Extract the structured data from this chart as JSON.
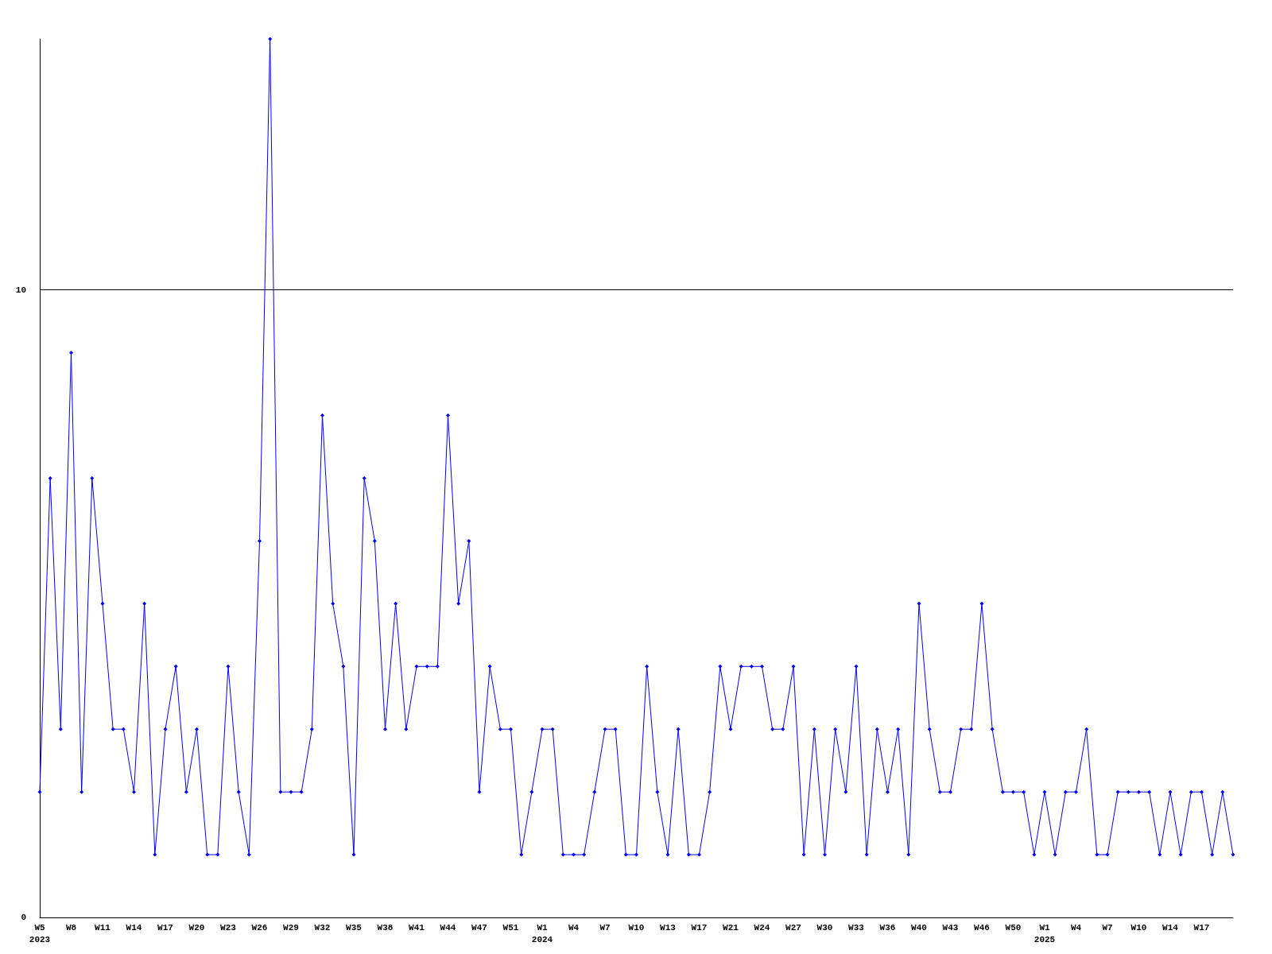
{
  "chart_data": {
    "type": "line",
    "categories": [
      "W5\n2023",
      null,
      null,
      "W8",
      null,
      null,
      "W11",
      null,
      null,
      "W14",
      null,
      null,
      "W17",
      null,
      null,
      "W20",
      null,
      null,
      "W23",
      null,
      null,
      "W26",
      null,
      null,
      "W29",
      null,
      null,
      "W32",
      null,
      null,
      "W35",
      null,
      null,
      "W38",
      null,
      null,
      "W41",
      null,
      null,
      "W44",
      null,
      null,
      "W47",
      null,
      null,
      "W51",
      null,
      null,
      "W1\n2024",
      null,
      null,
      "W4",
      null,
      null,
      "W7",
      null,
      null,
      "W10",
      null,
      null,
      "W13",
      null,
      null,
      "W17",
      null,
      null,
      "W21",
      null,
      null,
      "W24",
      null,
      null,
      "W27",
      null,
      null,
      "W30",
      null,
      null,
      "W33",
      null,
      null,
      "W36",
      null,
      null,
      "W40",
      null,
      null,
      "W43",
      null,
      null,
      "W46",
      null,
      null,
      "W50",
      null,
      null,
      "W1\n2025",
      null,
      null,
      "W4",
      null,
      null,
      "W7",
      null,
      null,
      "W10",
      null,
      null,
      "W14",
      null,
      null,
      "W17",
      null,
      null,
      null
    ],
    "values": [
      2,
      7,
      3,
      9,
      2,
      7,
      5,
      3,
      3,
      2,
      5,
      1,
      3,
      4,
      2,
      3,
      1,
      1,
      4,
      2,
      1,
      6,
      14,
      2,
      2,
      2,
      3,
      8,
      5,
      4,
      1,
      7,
      6,
      3,
      5,
      3,
      4,
      4,
      4,
      8,
      5,
      6,
      2,
      4,
      3,
      3,
      1,
      2,
      3,
      3,
      1,
      1,
      1,
      2,
      3,
      3,
      1,
      1,
      4,
      2,
      1,
      3,
      1,
      1,
      2,
      4,
      3,
      4,
      4,
      4,
      3,
      3,
      4,
      1,
      3,
      1,
      3,
      2,
      4,
      1,
      3,
      2,
      3,
      1,
      5,
      3,
      2,
      2,
      3,
      3,
      5,
      3,
      2,
      2,
      2,
      1,
      2,
      1,
      2,
      2,
      3,
      1,
      1,
      2,
      2,
      2,
      2,
      1,
      2,
      1,
      2,
      2,
      1,
      2,
      1
    ],
    "color": "#0000ff",
    "ylim": [
      0,
      14
    ],
    "yticks": [
      0,
      10
    ],
    "grid": "y",
    "marker": "diamond",
    "line_style": "solid"
  }
}
